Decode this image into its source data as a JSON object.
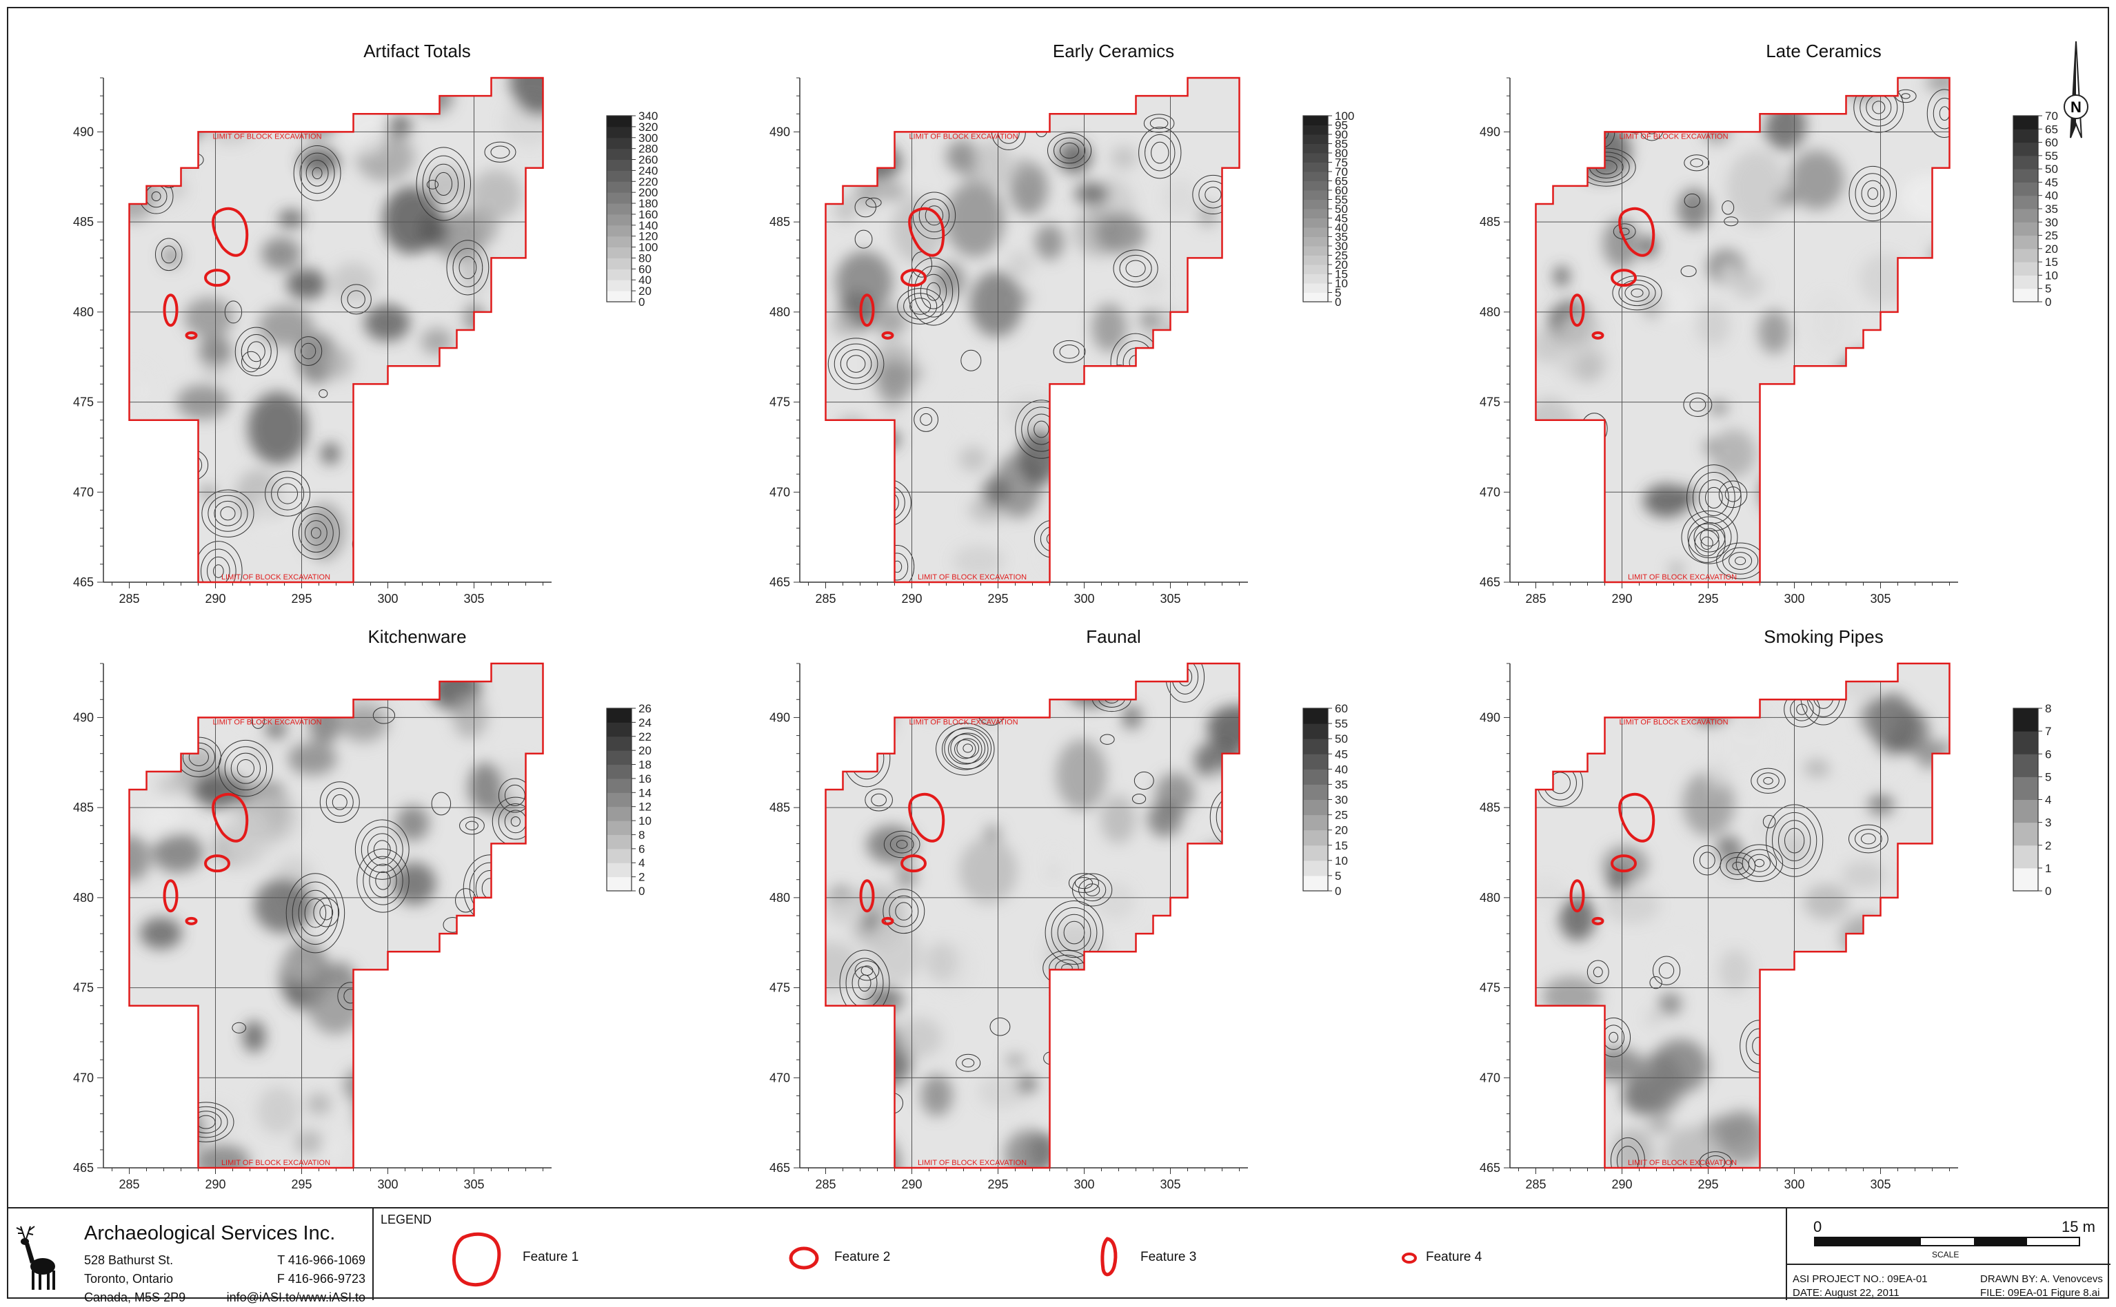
{
  "colors": {
    "boundary": "#e01b1b",
    "feature": "#e41a1a",
    "dark": "#222222",
    "light": "#f2f2f2"
  },
  "x_ticks": [
    "285",
    "290",
    "295",
    "300",
    "305"
  ],
  "y_ticks": [
    "465",
    "470",
    "475",
    "480",
    "485",
    "490"
  ],
  "boundary_label": "LIMIT OF BLOCK EXCAVATION",
  "panels": [
    {
      "title": "Artifact Totals",
      "scale": [
        "0",
        "20",
        "40",
        "60",
        "80",
        "100",
        "120",
        "140",
        "160",
        "180",
        "200",
        "220",
        "240",
        "260",
        "280",
        "300",
        "320",
        "340"
      ]
    },
    {
      "title": "Early Ceramics",
      "scale": [
        "0",
        "5",
        "10",
        "15",
        "20",
        "25",
        "30",
        "35",
        "40",
        "45",
        "50",
        "55",
        "60",
        "65",
        "70",
        "75",
        "80",
        "85",
        "90",
        "95",
        "100"
      ]
    },
    {
      "title": "Late Ceramics",
      "scale": [
        "0",
        "5",
        "10",
        "15",
        "20",
        "25",
        "30",
        "35",
        "40",
        "45",
        "50",
        "55",
        "60",
        "65",
        "70"
      ]
    },
    {
      "title": "Kitchenware",
      "scale": [
        "0",
        "2",
        "4",
        "6",
        "8",
        "10",
        "12",
        "14",
        "16",
        "18",
        "20",
        "22",
        "24",
        "26"
      ]
    },
    {
      "title": "Faunal",
      "scale": [
        "0",
        "5",
        "10",
        "15",
        "20",
        "25",
        "30",
        "35",
        "40",
        "45",
        "50",
        "55",
        "60"
      ]
    },
    {
      "title": "Smoking Pipes",
      "scale": [
        "0",
        "1",
        "2",
        "3",
        "4",
        "5",
        "6",
        "7",
        "8"
      ]
    }
  ],
  "north_label": "N",
  "company": {
    "name": "Archaeological Services Inc.",
    "street": "528 Bathurst St.",
    "city": "Toronto, Ontario",
    "country": "Canada, M5S 2P9",
    "tel": "T 416-966-1069",
    "fax": "F 416-966-9723",
    "web": "info@iASI.to/www.iASI.to"
  },
  "legend": {
    "title": "LEGEND",
    "items": [
      "Feature 1",
      "Feature 2",
      "Feature 3",
      "Feature 4"
    ]
  },
  "scale_bar": {
    "start": "0",
    "end": "15 m",
    "label": "SCALE"
  },
  "meta": {
    "project": "ASI PROJECT NO.: 09EA-01",
    "date": "DATE: August 22, 2011",
    "drawn": "DRAWN BY: A. Venovcevs",
    "file": "FILE: 09EA-01 Figure 8.ai"
  }
}
